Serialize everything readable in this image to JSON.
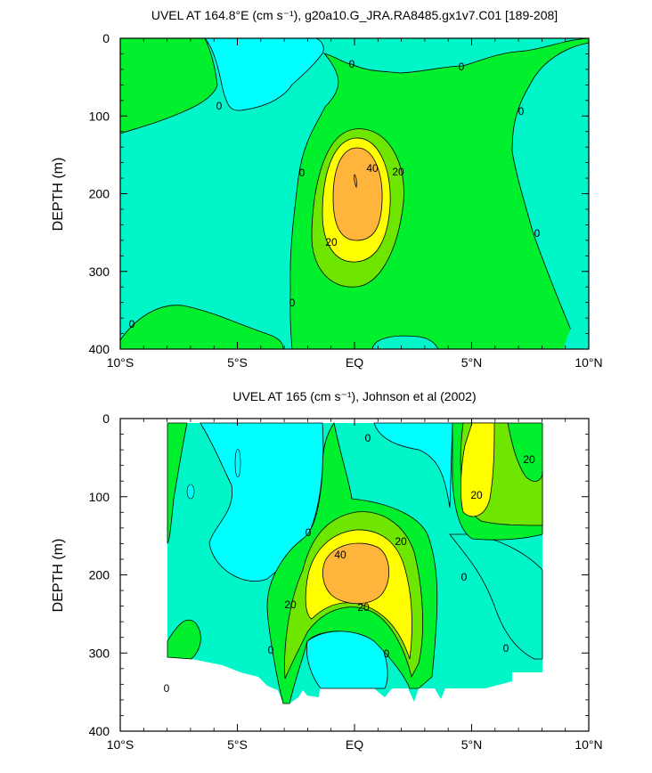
{
  "chart_data": [
    {
      "type": "heatmap",
      "title": "UVEL AT 164.8°E (cm s⁻¹), g20a10.G_JRA.RA8485.gx1v7.C01 [189-208]",
      "ylabel": "DEPTH (m)",
      "xlabel": "",
      "x_ticks": [
        "10°S",
        "5°S",
        "EQ",
        "5°N",
        "10°N"
      ],
      "y_ticks": [
        "0",
        "100",
        "200",
        "300",
        "400"
      ],
      "xlim": [
        -10,
        10
      ],
      "ylim": [
        400,
        0
      ],
      "y_inverted": true,
      "contour_levels": [
        0,
        10,
        20,
        30,
        40,
        50
      ],
      "fill_colors": {
        "below_0": "#00ffff",
        "0_to_10": "#00f5c8",
        "10_to_20": "#00f02d",
        "20_to_30": "#6ee600",
        "30_to_40": "#ffff00",
        "40_to_50": "#ffb43c"
      },
      "core": {
        "lat": 0.0,
        "depth": 185,
        "max_contour": 40
      },
      "contour_labels": [
        "0",
        "0",
        "0",
        "0",
        "0",
        "0",
        "0",
        "0",
        "20",
        "20",
        "40"
      ]
    },
    {
      "type": "heatmap",
      "title": "UVEL AT 165 (cm s⁻¹), Johnson et al (2002)",
      "ylabel": "DEPTH (m)",
      "xlabel": "",
      "x_ticks": [
        "10°S",
        "5°S",
        "EQ",
        "5°N",
        "10°N"
      ],
      "y_ticks": [
        "0",
        "100",
        "200",
        "300",
        "400"
      ],
      "xlim": [
        -10,
        10
      ],
      "ylim": [
        400,
        0
      ],
      "y_inverted": true,
      "data_extent_lat": [
        -8,
        8
      ],
      "contour_levels": [
        0,
        10,
        20,
        30,
        40,
        50
      ],
      "fill_colors": {
        "below_0": "#00ffff",
        "0_to_10": "#00f5c8",
        "10_to_20": "#00f02d",
        "20_to_30": "#6ee600",
        "30_to_40": "#ffff00",
        "40_to_50": "#ffb43c"
      },
      "core": {
        "lat": 0.0,
        "depth": 190,
        "max_contour": 40
      },
      "contour_labels": [
        "0",
        "0",
        "0",
        "0",
        "0",
        "0",
        "0",
        "20",
        "20",
        "20",
        "20",
        "20",
        "40"
      ]
    }
  ]
}
